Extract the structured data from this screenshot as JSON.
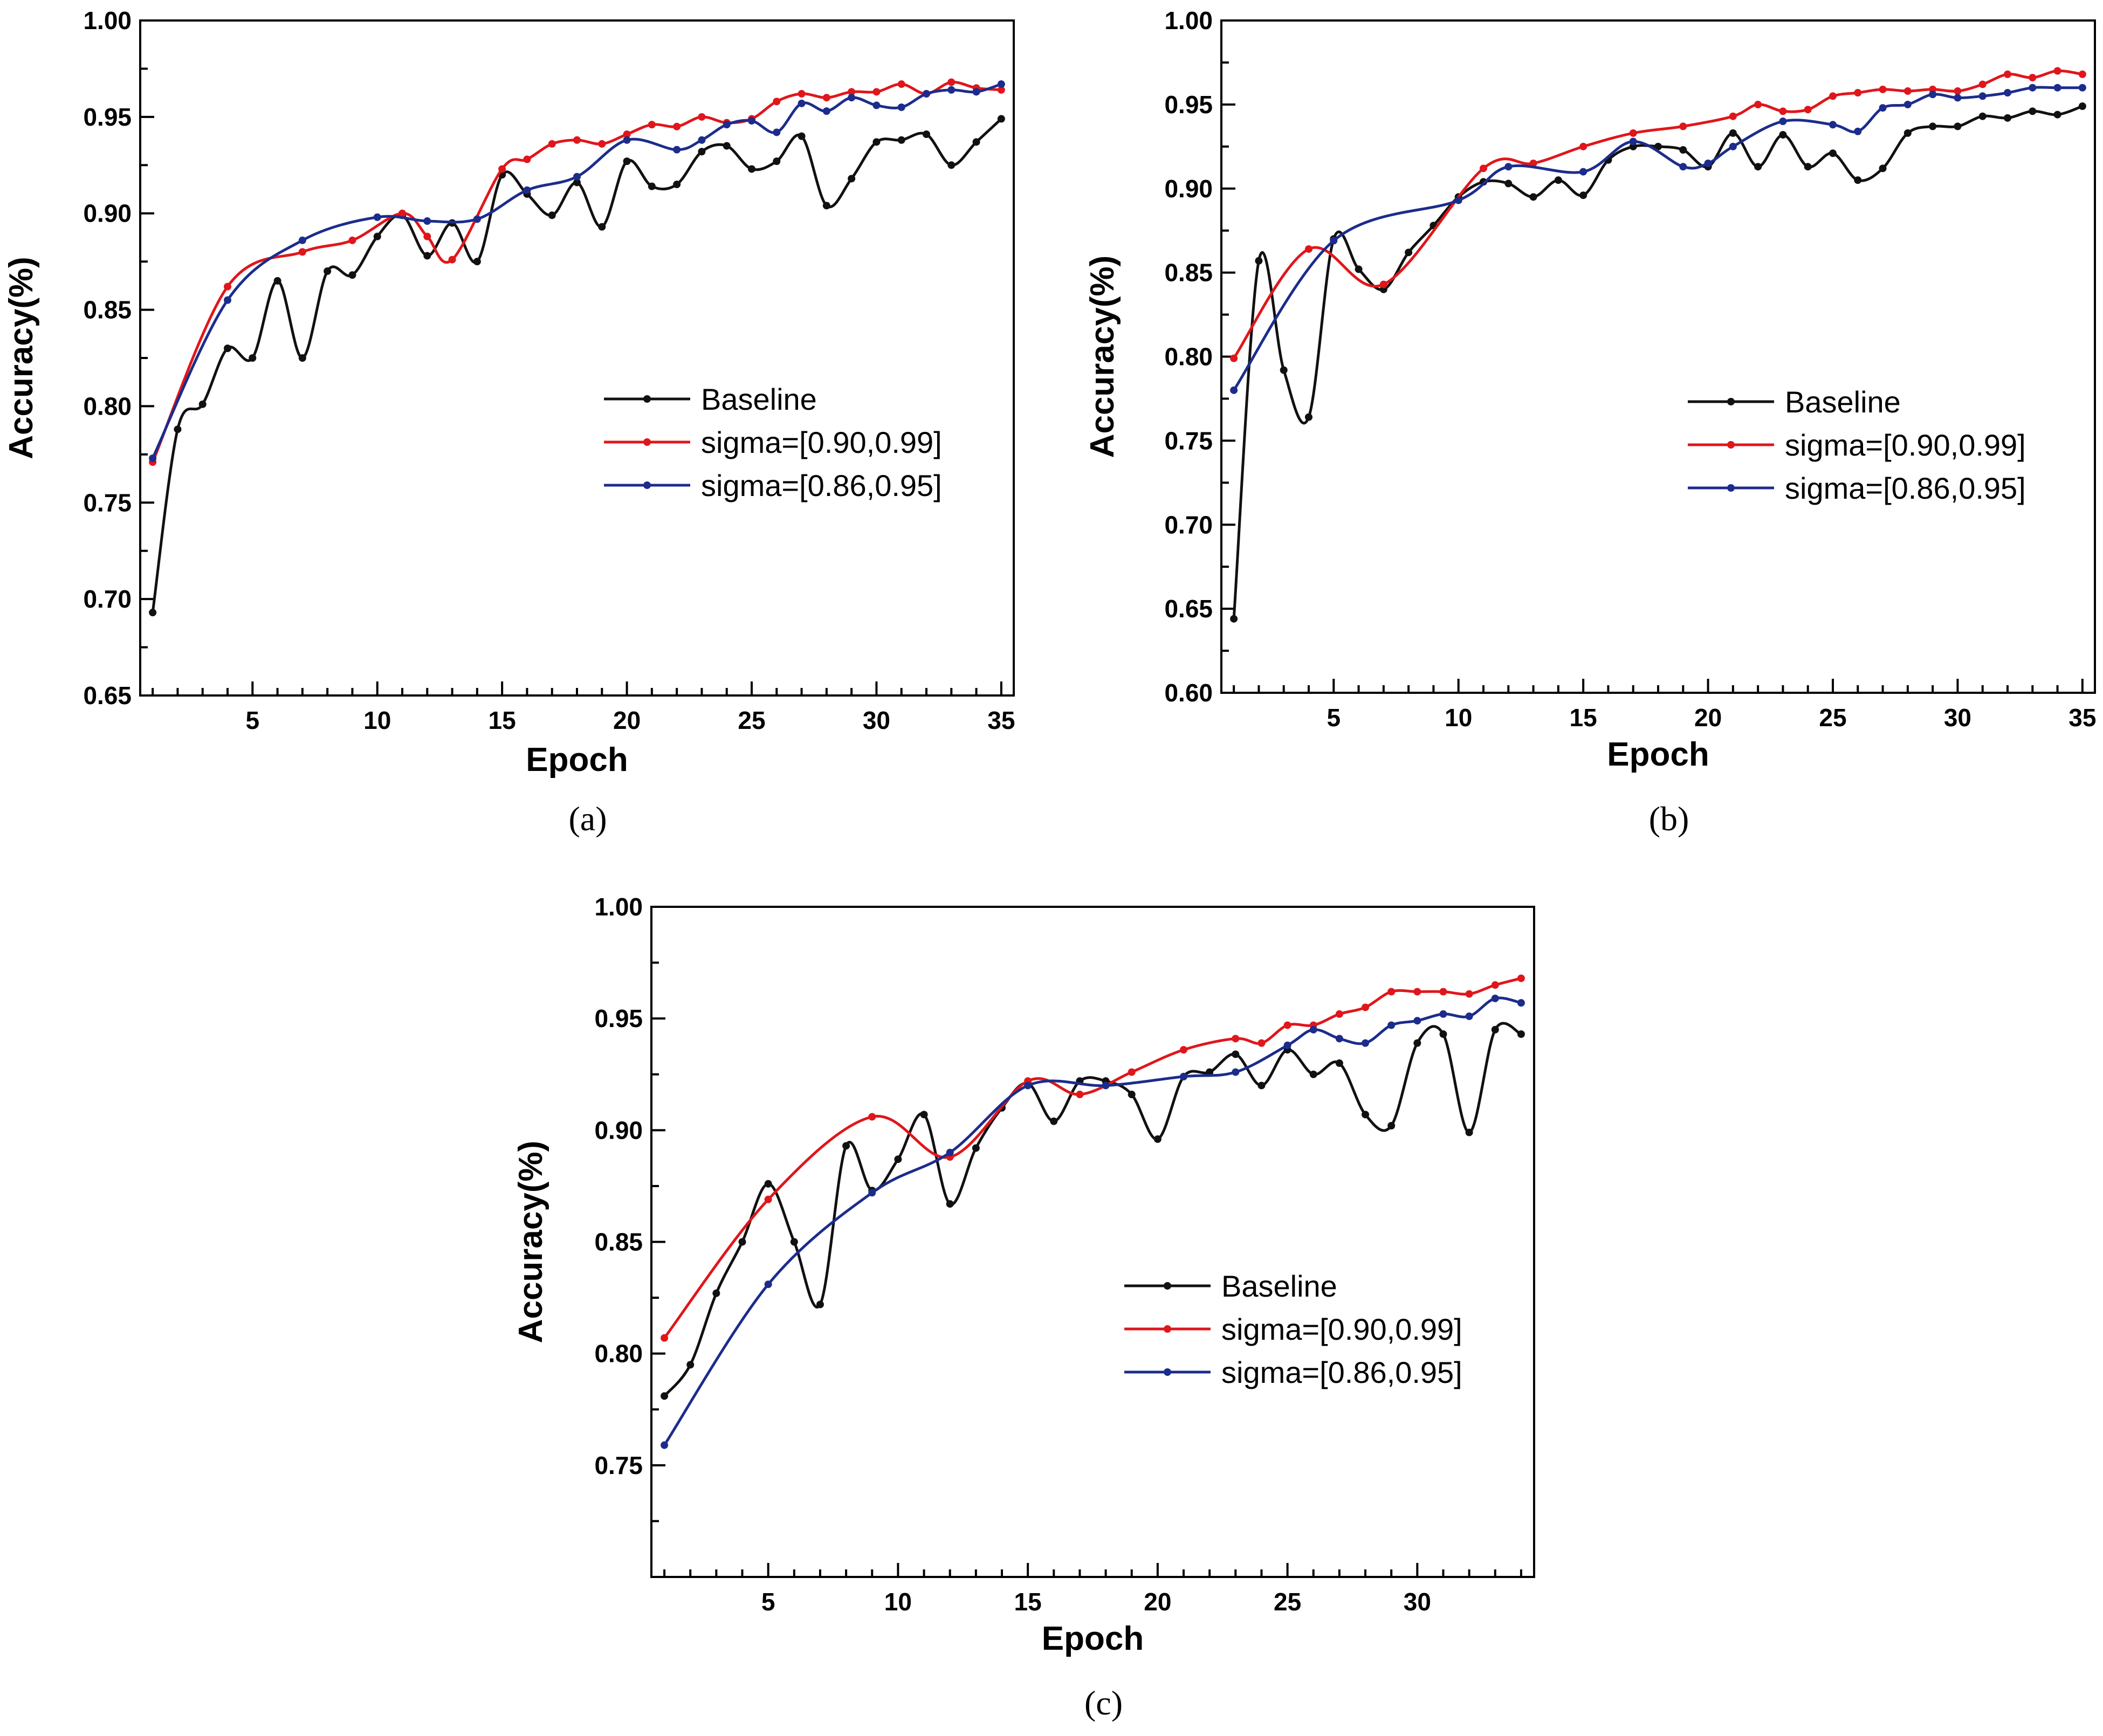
{
  "colors": {
    "baseline": "#111111",
    "sigma_a": "#e0161b",
    "sigma_b": "#1c2c8c",
    "axis": "#000000"
  },
  "chart_data": [
    {
      "type": "line",
      "caption": "(a)",
      "xlabel": "Epoch",
      "ylabel": "Accuracy(%)",
      "xlim": [
        0.5,
        35.5
      ],
      "ylim": [
        0.65,
        1.0
      ],
      "xticks": [
        5,
        10,
        15,
        20,
        25,
        30,
        35
      ],
      "yticks": [
        0.65,
        0.7,
        0.75,
        0.8,
        0.85,
        0.9,
        0.95,
        1.0
      ],
      "ytick_labels": [
        "0.65",
        "0.70",
        "0.75",
        "0.80",
        "0.85",
        "0.90",
        "0.95",
        "1.00"
      ],
      "legend": [
        "Baseline",
        "sigma=[0.90,0.99]",
        "sigma=[0.86,0.95]"
      ],
      "series": [
        {
          "name": "Baseline",
          "x": [
            1,
            2,
            3,
            4,
            5,
            6,
            7,
            8,
            9,
            10,
            11,
            12,
            13,
            14,
            15,
            16,
            17,
            18,
            19,
            20,
            21,
            22,
            23,
            24,
            25,
            26,
            27,
            28,
            29,
            30,
            31,
            32,
            33,
            34,
            35
          ],
          "values": [
            0.693,
            0.788,
            0.801,
            0.83,
            0.825,
            0.865,
            0.825,
            0.87,
            0.868,
            0.888,
            0.899,
            0.878,
            0.895,
            0.875,
            0.92,
            0.91,
            0.899,
            0.916,
            0.893,
            0.927,
            0.914,
            0.915,
            0.932,
            0.935,
            0.923,
            0.927,
            0.94,
            0.904,
            0.918,
            0.937,
            0.938,
            0.941,
            0.925,
            0.937,
            0.949
          ]
        },
        {
          "name": "sigma=[0.90,0.99]",
          "x": [
            1,
            4,
            7,
            9,
            11,
            12,
            13,
            15,
            16,
            17,
            18,
            19,
            20,
            21,
            22,
            23,
            24,
            25,
            26,
            27,
            28,
            29,
            30,
            31,
            32,
            33,
            34,
            35
          ],
          "values": [
            0.771,
            0.862,
            0.88,
            0.886,
            0.9,
            0.888,
            0.876,
            0.923,
            0.928,
            0.936,
            0.938,
            0.936,
            0.941,
            0.946,
            0.945,
            0.95,
            0.947,
            0.949,
            0.958,
            0.962,
            0.96,
            0.963,
            0.963,
            0.967,
            0.962,
            0.968,
            0.965,
            0.964
          ]
        },
        {
          "name": "sigma=[0.86,0.95]",
          "x": [
            1,
            4,
            7,
            10,
            12,
            14,
            16,
            18,
            20,
            22,
            23,
            24,
            25,
            26,
            27,
            28,
            29,
            30,
            31,
            32,
            33,
            34,
            35
          ],
          "values": [
            0.773,
            0.855,
            0.886,
            0.898,
            0.896,
            0.897,
            0.912,
            0.919,
            0.938,
            0.933,
            0.938,
            0.946,
            0.948,
            0.942,
            0.957,
            0.953,
            0.96,
            0.956,
            0.955,
            0.962,
            0.964,
            0.963,
            0.967
          ]
        }
      ]
    },
    {
      "type": "line",
      "caption": "(b)",
      "xlabel": "Epoch",
      "ylabel": "Accuracy(%)",
      "xlim": [
        0.5,
        35.5
      ],
      "ylim": [
        0.6,
        1.0
      ],
      "xticks": [
        5,
        10,
        15,
        20,
        25,
        30,
        35
      ],
      "yticks": [
        0.6,
        0.65,
        0.7,
        0.75,
        0.8,
        0.85,
        0.9,
        0.95,
        1.0
      ],
      "ytick_labels": [
        "0.60",
        "0.65",
        "0.70",
        "0.75",
        "0.80",
        "0.85",
        "0.90",
        "0.95",
        "1.00"
      ],
      "legend": [
        "Baseline",
        "sigma=[0.90,0.99]",
        "sigma=[0.86,0.95]"
      ],
      "series": [
        {
          "name": "Baseline",
          "x": [
            1,
            2,
            3,
            4,
            5,
            6,
            7,
            8,
            9,
            10,
            11,
            12,
            13,
            14,
            15,
            16,
            17,
            18,
            19,
            20,
            21,
            22,
            23,
            24,
            25,
            26,
            27,
            28,
            29,
            30,
            31,
            32,
            33,
            34,
            35
          ],
          "values": [
            0.644,
            0.857,
            0.792,
            0.764,
            0.87,
            0.852,
            0.84,
            0.862,
            0.878,
            0.895,
            0.904,
            0.903,
            0.895,
            0.905,
            0.896,
            0.917,
            0.925,
            0.925,
            0.923,
            0.913,
            0.933,
            0.913,
            0.932,
            0.913,
            0.921,
            0.905,
            0.912,
            0.933,
            0.937,
            0.937,
            0.943,
            0.942,
            0.946,
            0.944,
            0.949
          ]
        },
        {
          "name": "sigma=[0.90,0.99]",
          "x": [
            1,
            4,
            7,
            11,
            13,
            15,
            17,
            19,
            21,
            22,
            23,
            24,
            25,
            26,
            27,
            28,
            29,
            30,
            31,
            32,
            33,
            34,
            35
          ],
          "values": [
            0.799,
            0.864,
            0.843,
            0.912,
            0.915,
            0.925,
            0.933,
            0.937,
            0.943,
            0.95,
            0.946,
            0.947,
            0.955,
            0.957,
            0.959,
            0.958,
            0.959,
            0.958,
            0.962,
            0.968,
            0.966,
            0.97,
            0.968
          ]
        },
        {
          "name": "sigma=[0.86,0.95]",
          "x": [
            1,
            5,
            10,
            12,
            15,
            17,
            19,
            20,
            21,
            23,
            25,
            26,
            27,
            28,
            29,
            30,
            31,
            32,
            33,
            34,
            35
          ],
          "values": [
            0.78,
            0.869,
            0.893,
            0.913,
            0.91,
            0.928,
            0.913,
            0.915,
            0.925,
            0.94,
            0.938,
            0.934,
            0.948,
            0.95,
            0.956,
            0.954,
            0.955,
            0.957,
            0.96,
            0.96,
            0.96
          ]
        }
      ]
    },
    {
      "type": "line",
      "caption": "(c)",
      "xlabel": "Epoch",
      "ylabel": "Accuracy(%)",
      "xlim": [
        0.5,
        34.5
      ],
      "ylim": [
        0.7,
        1.0
      ],
      "xticks": [
        5,
        10,
        15,
        20,
        25,
        30
      ],
      "yticks": [
        0.75,
        0.8,
        0.85,
        0.9,
        0.95,
        1.0
      ],
      "ytick_labels": [
        "0.75",
        "0.80",
        "0.85",
        "0.90",
        "0.95",
        "1.00"
      ],
      "legend": [
        "Baseline",
        "sigma=[0.90,0.99]",
        "sigma=[0.86,0.95]"
      ],
      "series": [
        {
          "name": "Baseline",
          "x": [
            1,
            2,
            3,
            4,
            5,
            6,
            7,
            8,
            9,
            10,
            11,
            12,
            13,
            14,
            15,
            16,
            17,
            18,
            19,
            20,
            21,
            22,
            23,
            24,
            25,
            26,
            27,
            28,
            29,
            30,
            31,
            32,
            33,
            34
          ],
          "values": [
            0.781,
            0.795,
            0.827,
            0.85,
            0.876,
            0.85,
            0.822,
            0.893,
            0.873,
            0.887,
            0.907,
            0.867,
            0.892,
            0.91,
            0.921,
            0.904,
            0.922,
            0.922,
            0.916,
            0.896,
            0.924,
            0.926,
            0.934,
            0.92,
            0.936,
            0.925,
            0.93,
            0.907,
            0.902,
            0.939,
            0.943,
            0.899,
            0.945,
            0.943
          ]
        },
        {
          "name": "sigma=[0.90,0.99]",
          "x": [
            1,
            5,
            9,
            12,
            15,
            17,
            19,
            21,
            23,
            24,
            25,
            26,
            27,
            28,
            29,
            30,
            31,
            32,
            33,
            34
          ],
          "values": [
            0.807,
            0.869,
            0.906,
            0.888,
            0.922,
            0.916,
            0.926,
            0.936,
            0.941,
            0.939,
            0.947,
            0.947,
            0.952,
            0.955,
            0.962,
            0.962,
            0.962,
            0.961,
            0.965,
            0.968
          ]
        },
        {
          "name": "sigma=[0.86,0.95]",
          "x": [
            1,
            5,
            9,
            12,
            15,
            18,
            21,
            23,
            25,
            26,
            27,
            28,
            29,
            30,
            31,
            32,
            33,
            34
          ],
          "values": [
            0.759,
            0.831,
            0.872,
            0.89,
            0.92,
            0.92,
            0.924,
            0.926,
            0.938,
            0.945,
            0.941,
            0.939,
            0.947,
            0.949,
            0.952,
            0.951,
            0.959,
            0.957
          ]
        }
      ]
    }
  ]
}
